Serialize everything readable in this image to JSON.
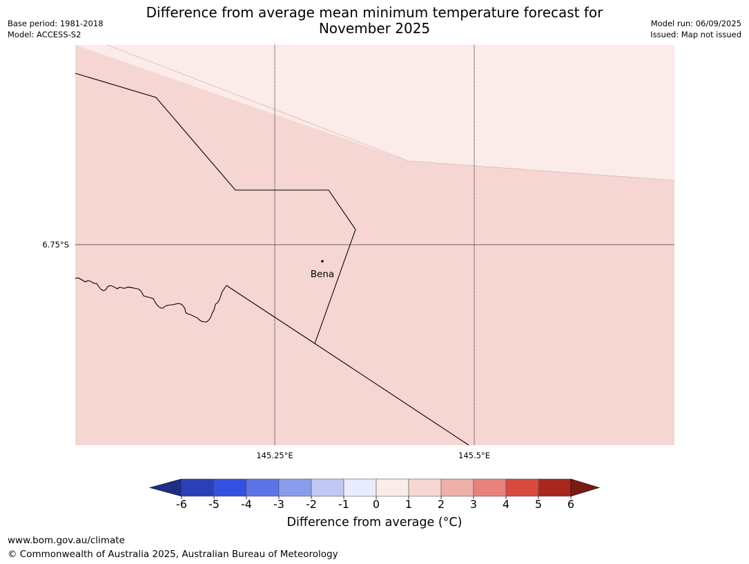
{
  "title": "Difference from average mean minimum temperature forecast for November 2025",
  "meta_left": {
    "base_period": "Base period: 1981-2018",
    "model": "Model: ACCESS-S2"
  },
  "meta_right": {
    "model_run": "Model run: 06/09/2025",
    "issued": "Issued: Map not issued"
  },
  "map": {
    "lat_label": "6.75°S",
    "lon_labels": [
      "145.25°E",
      "145.5°E"
    ],
    "place": {
      "name": "Bena"
    },
    "colors": {
      "zone_0_1": "#fbebe9",
      "zone_1_2": "#f5d6d3",
      "border": "#000000",
      "graticule": "#000000"
    }
  },
  "colorbar": {
    "ticks": [
      "-6",
      "-5",
      "-4",
      "-3",
      "-2",
      "-1",
      "0",
      "1",
      "2",
      "3",
      "4",
      "5",
      "6"
    ],
    "colors": [
      "#1f2d86",
      "#2a3fb8",
      "#3350e0",
      "#5b73e6",
      "#8a9cec",
      "#c1c8f5",
      "#e9ecfc",
      "#fbebe9",
      "#f5d6d3",
      "#eeaea9",
      "#e8827c",
      "#d84a3f",
      "#aa271f",
      "#7a1a15"
    ],
    "label": "Difference from average (°C)"
  },
  "footer": {
    "url": "www.bom.gov.au/climate",
    "copyright": "© Commonwealth of Australia 2025, Australian Bureau of Meteorology"
  }
}
